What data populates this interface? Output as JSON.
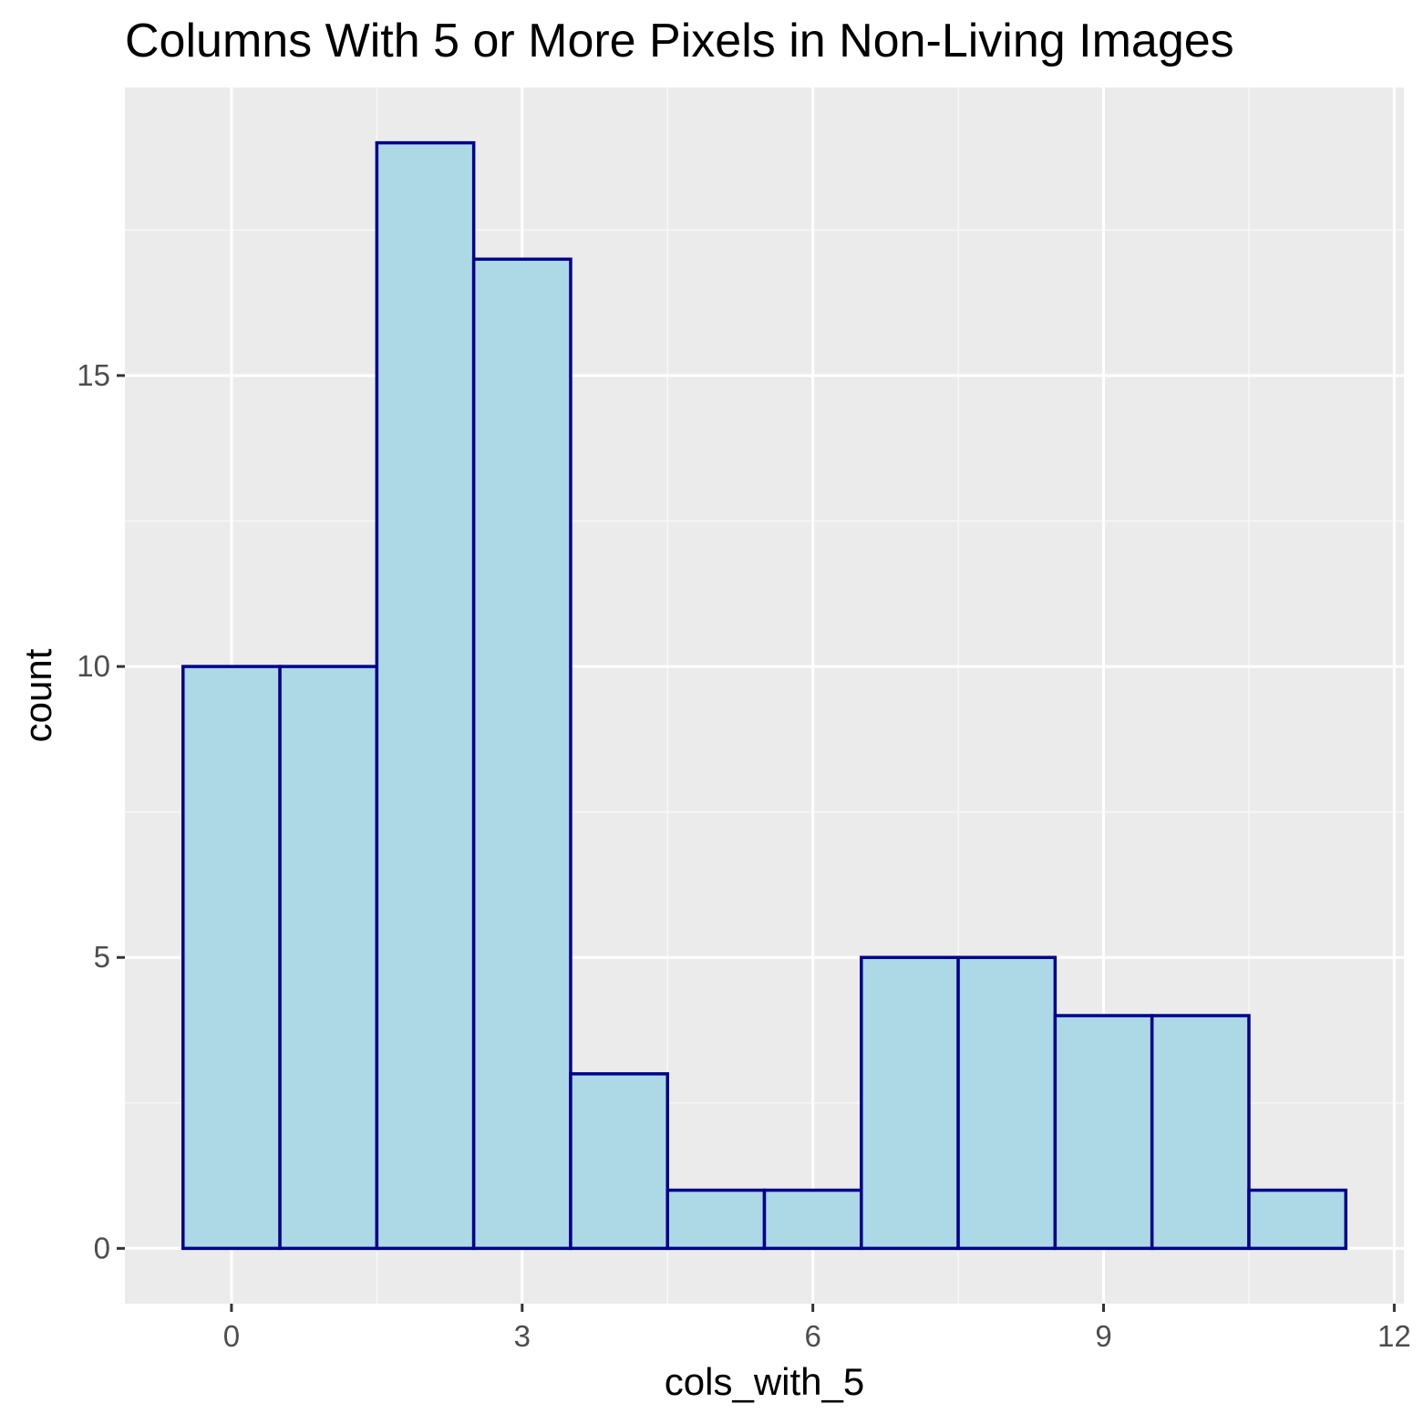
{
  "chart_data": {
    "type": "bar",
    "title": "Columns With 5 or More Pixels in Non-Living Images",
    "xlabel": "cols_with_5",
    "ylabel": "count",
    "bins": [
      {
        "x": 0,
        "count": 10
      },
      {
        "x": 1,
        "count": 10
      },
      {
        "x": 2,
        "count": 19
      },
      {
        "x": 3,
        "count": 17
      },
      {
        "x": 4,
        "count": 3
      },
      {
        "x": 5,
        "count": 1
      },
      {
        "x": 6,
        "count": 1
      },
      {
        "x": 7,
        "count": 5
      },
      {
        "x": 8,
        "count": 5
      },
      {
        "x": 9,
        "count": 4
      },
      {
        "x": 10,
        "count": 4
      },
      {
        "x": 11,
        "count": 1
      }
    ],
    "binwidth": 1,
    "xlim": [
      -1.1,
      12.1
    ],
    "ylim": [
      -0.95,
      19.95
    ],
    "xticks": [
      0,
      3,
      6,
      9,
      12
    ],
    "yticks": [
      0,
      5,
      10,
      15
    ],
    "grid": true,
    "colors": {
      "panel_background": "#ebebeb",
      "grid_major": "#ffffff",
      "grid_minor": "#f7f7f7",
      "bar_fill": "#add8e6",
      "bar_outline": "#00008b",
      "tick_mark": "#333333"
    }
  }
}
